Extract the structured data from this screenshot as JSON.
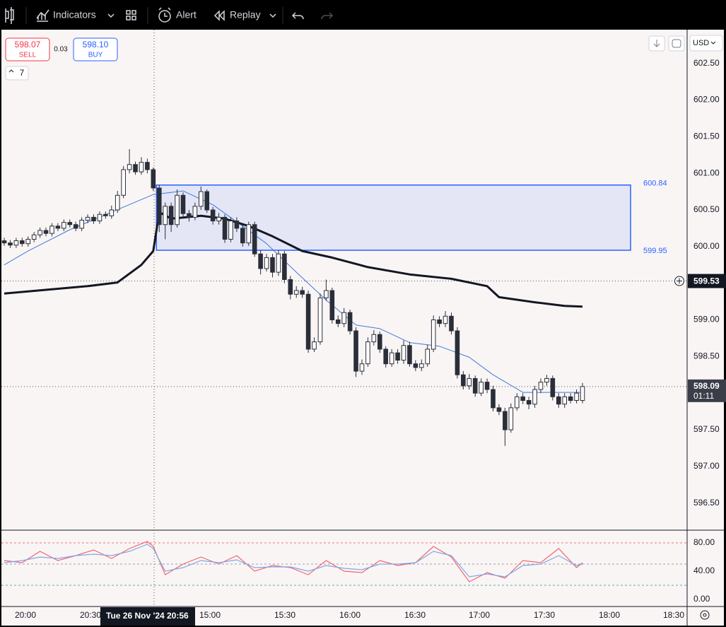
{
  "toolbar": {
    "indicators": "Indicators",
    "alert": "Alert",
    "replay": "Replay"
  },
  "trade": {
    "sell_price": "598.07",
    "sell": "SELL",
    "spread": "0.03",
    "buy_price": "598.10",
    "buy": "BUY"
  },
  "interval_badge": "7",
  "currency": "USD",
  "chart_data": [
    {
      "type": "candlestick",
      "up_color": "#ffffff",
      "down_color": "#2a2e39",
      "ohlc": [
        [
          600.08,
          600.12,
          600.01,
          600.05
        ],
        [
          600.05,
          600.09,
          599.98,
          600.02
        ],
        [
          600.02,
          600.12,
          599.98,
          600.08
        ],
        [
          600.08,
          600.12,
          600.0,
          600.04
        ],
        [
          600.04,
          600.14,
          600.0,
          600.1
        ],
        [
          600.1,
          600.2,
          600.06,
          600.16
        ],
        [
          600.16,
          600.26,
          600.12,
          600.22
        ],
        [
          600.22,
          600.26,
          600.14,
          600.18
        ],
        [
          600.18,
          600.32,
          600.14,
          600.28
        ],
        [
          600.28,
          600.32,
          600.21,
          600.25
        ],
        [
          600.25,
          600.37,
          600.21,
          600.33
        ],
        [
          600.33,
          600.37,
          600.26,
          600.3
        ],
        [
          600.3,
          600.34,
          600.21,
          600.25
        ],
        [
          600.25,
          600.4,
          600.21,
          600.36
        ],
        [
          600.36,
          600.44,
          600.32,
          600.4
        ],
        [
          600.4,
          600.44,
          600.31,
          600.35
        ],
        [
          600.35,
          600.48,
          600.31,
          600.44
        ],
        [
          600.44,
          600.48,
          600.38,
          600.42
        ],
        [
          600.42,
          600.56,
          600.38,
          600.5
        ],
        [
          600.5,
          600.76,
          600.46,
          600.7
        ],
        [
          600.7,
          601.1,
          600.66,
          601.05
        ],
        [
          601.05,
          601.33,
          601.0,
          601.12
        ],
        [
          601.12,
          601.16,
          600.98,
          601.02
        ],
        [
          601.02,
          601.22,
          600.98,
          601.15
        ],
        [
          601.15,
          601.2,
          601.0,
          601.05
        ],
        [
          601.05,
          601.08,
          600.76,
          600.8
        ],
        [
          600.8,
          600.84,
          600.2,
          600.3
        ],
        [
          600.3,
          600.6,
          600.1,
          600.55
        ],
        [
          600.55,
          600.6,
          600.2,
          600.3
        ],
        [
          600.3,
          600.78,
          600.26,
          600.7
        ],
        [
          600.7,
          600.74,
          600.4,
          600.45
        ],
        [
          600.45,
          600.5,
          600.34,
          600.4
        ],
        [
          600.4,
          600.6,
          600.36,
          600.55
        ],
        [
          600.55,
          600.82,
          600.5,
          600.75
        ],
        [
          600.75,
          600.78,
          600.46,
          600.5
        ],
        [
          600.5,
          600.54,
          600.3,
          600.35
        ],
        [
          600.35,
          600.46,
          600.3,
          600.4
        ],
        [
          600.4,
          600.44,
          600.05,
          600.1
        ],
        [
          600.1,
          600.4,
          600.06,
          600.35
        ],
        [
          600.35,
          600.4,
          600.2,
          600.25
        ],
        [
          600.25,
          600.3,
          600.0,
          600.05
        ],
        [
          600.05,
          600.34,
          600.01,
          600.3
        ],
        [
          600.3,
          600.34,
          599.86,
          599.9
        ],
        [
          599.9,
          599.95,
          599.62,
          599.7
        ],
        [
          599.7,
          599.9,
          599.66,
          599.85
        ],
        [
          599.85,
          599.9,
          599.58,
          599.65
        ],
        [
          599.65,
          599.95,
          599.6,
          599.9
        ],
        [
          599.9,
          599.94,
          599.5,
          599.55
        ],
        [
          599.55,
          599.6,
          599.28,
          599.35
        ],
        [
          599.35,
          599.46,
          599.3,
          599.4
        ],
        [
          599.4,
          599.45,
          599.3,
          599.35
        ],
        [
          599.35,
          599.4,
          598.55,
          598.6
        ],
        [
          598.6,
          598.76,
          598.56,
          598.7
        ],
        [
          598.7,
          599.36,
          598.66,
          599.3
        ],
        [
          599.3,
          599.55,
          599.26,
          599.4
        ],
        [
          599.4,
          599.44,
          598.95,
          599.0
        ],
        [
          599.0,
          599.06,
          598.9,
          598.95
        ],
        [
          598.95,
          599.16,
          598.9,
          599.1
        ],
        [
          599.1,
          599.14,
          598.8,
          598.85
        ],
        [
          598.85,
          598.9,
          598.22,
          598.3
        ],
        [
          598.3,
          598.46,
          598.25,
          598.4
        ],
        [
          598.4,
          598.76,
          598.36,
          598.7
        ],
        [
          598.7,
          598.86,
          598.65,
          598.8
        ],
        [
          598.8,
          598.84,
          598.55,
          598.6
        ],
        [
          598.6,
          598.64,
          598.35,
          598.4
        ],
        [
          598.4,
          598.6,
          598.36,
          598.55
        ],
        [
          598.55,
          598.6,
          598.4,
          598.45
        ],
        [
          598.45,
          598.72,
          598.4,
          598.65
        ],
        [
          598.65,
          598.7,
          598.36,
          598.4
        ],
        [
          598.4,
          598.45,
          598.3,
          598.35
        ],
        [
          598.35,
          598.46,
          598.3,
          598.4
        ],
        [
          598.4,
          598.66,
          598.36,
          598.6
        ],
        [
          598.6,
          599.06,
          598.56,
          599.0
        ],
        [
          599.0,
          599.05,
          598.9,
          598.95
        ],
        [
          598.95,
          599.12,
          598.9,
          599.05
        ],
        [
          599.05,
          599.1,
          598.8,
          598.85
        ],
        [
          598.85,
          598.9,
          598.2,
          598.25
        ],
        [
          598.25,
          598.3,
          598.05,
          598.1
        ],
        [
          598.1,
          598.26,
          598.05,
          598.2
        ],
        [
          598.2,
          598.24,
          597.95,
          598.0
        ],
        [
          598.0,
          598.2,
          597.96,
          598.15
        ],
        [
          598.15,
          598.2,
          598.0,
          598.05
        ],
        [
          598.05,
          598.1,
          597.75,
          597.8
        ],
        [
          597.8,
          597.85,
          597.7,
          597.75
        ],
        [
          597.75,
          597.8,
          597.28,
          597.5
        ],
        [
          597.5,
          597.86,
          597.46,
          597.8
        ],
        [
          597.8,
          598.0,
          597.76,
          597.95
        ],
        [
          597.95,
          598.0,
          597.85,
          597.9
        ],
        [
          597.9,
          597.95,
          597.78,
          597.85
        ],
        [
          597.85,
          598.1,
          597.8,
          598.05
        ],
        [
          598.05,
          598.2,
          598.0,
          598.15
        ],
        [
          598.15,
          598.25,
          598.1,
          598.2
        ],
        [
          598.2,
          598.24,
          597.9,
          597.95
        ],
        [
          597.95,
          598.0,
          597.8,
          597.85
        ],
        [
          597.85,
          598.0,
          597.8,
          597.95
        ],
        [
          597.95,
          598.0,
          597.86,
          597.9
        ],
        [
          597.9,
          598.05,
          597.86,
          598.0
        ],
        [
          597.9,
          598.14,
          597.86,
          598.09
        ]
      ],
      "overlays": [
        {
          "color": "#3d7bd9",
          "width": 1,
          "x": [
            0,
            4,
            11,
            18,
            25,
            30,
            35,
            40,
            44,
            49,
            54,
            59,
            63,
            68,
            73,
            78,
            82,
            87,
            92,
            97
          ],
          "values": [
            599.75,
            599.94,
            600.23,
            600.47,
            600.71,
            600.76,
            600.57,
            600.28,
            600.04,
            599.65,
            599.27,
            598.93,
            598.88,
            598.69,
            598.64,
            598.49,
            598.25,
            598.01,
            598.01,
            598.01
          ]
        },
        {
          "color": "#131722",
          "width": 3,
          "x": [
            0,
            7,
            14,
            19,
            23,
            25,
            26,
            28,
            33,
            37,
            41,
            45,
            50,
            55,
            61,
            68,
            75,
            81,
            83,
            89,
            94,
            97
          ],
          "values": [
            599.36,
            599.41,
            599.46,
            599.51,
            599.75,
            599.94,
            600.47,
            600.38,
            600.42,
            600.38,
            600.28,
            600.14,
            599.94,
            599.85,
            599.72,
            599.62,
            599.56,
            599.46,
            599.31,
            599.24,
            599.19,
            599.18
          ]
        }
      ],
      "zone": {
        "top": 600.84,
        "bottom": 599.95,
        "color": "#2962ff"
      },
      "crosshair": {
        "price": 599.53,
        "date": "Tue 26 Nov '24",
        "time": "20:56"
      },
      "last_price": 598.09,
      "countdown": "01:11",
      "ylim": [
        596.13,
        602.96
      ],
      "yticks": [
        {
          "value": 602.5,
          "label": "602.50"
        },
        {
          "value": 602,
          "label": "602.00"
        },
        {
          "value": 601.5,
          "label": "601.50"
        },
        {
          "value": 601,
          "label": "601.00"
        },
        {
          "value": 600.5,
          "label": "600.50"
        },
        {
          "value": 600,
          "label": "600.00"
        },
        {
          "value": 599.5,
          "label": "599.50"
        },
        {
          "value": 599,
          "label": "599.00"
        },
        {
          "value": 598.5,
          "label": "598.50"
        },
        {
          "value": 598,
          "label": "598.00"
        },
        {
          "value": 597.5,
          "label": "597.50"
        },
        {
          "value": 597,
          "label": "597.00"
        },
        {
          "value": 596.5,
          "label": "596.50"
        }
      ],
      "xticks": [
        "20:00",
        "20:30",
        "15:00",
        "15:30",
        "16:00",
        "16:30",
        "17:00",
        "17:30",
        "18:00",
        "18:30"
      ]
    },
    {
      "type": "line",
      "ylim": [
        -9,
        97
      ],
      "yticks": [
        {
          "value": 80,
          "label": "80.00"
        },
        {
          "value": 40,
          "label": "40.00"
        },
        {
          "value": 0,
          "label": "0.00"
        }
      ],
      "levels": [
        {
          "value": 80,
          "color": "#f23645"
        },
        {
          "value": 50,
          "color": "#787b86"
        },
        {
          "value": 20,
          "color": "#089981"
        }
      ],
      "x": [
        0,
        3,
        6,
        9,
        12,
        15,
        18,
        21,
        24,
        25,
        27,
        30,
        33,
        36,
        39,
        42,
        45,
        48,
        51,
        54,
        57,
        60,
        63,
        66,
        69,
        72,
        75,
        78,
        81,
        84,
        87,
        90,
        93,
        96,
        97
      ],
      "series": [
        {
          "color": "#f0676f",
          "values": [
            55,
            52,
            68,
            55,
            62,
            70,
            58,
            72,
            82,
            75,
            35,
            50,
            60,
            50,
            62,
            40,
            48,
            45,
            35,
            55,
            40,
            38,
            55,
            48,
            52,
            75,
            60,
            25,
            38,
            30,
            55,
            52,
            72,
            45,
            52
          ]
        },
        {
          "color": "#7fa7e8",
          "values": [
            52,
            55,
            60,
            58,
            62,
            64,
            62,
            68,
            78,
            72,
            40,
            45,
            55,
            52,
            56,
            45,
            46,
            46,
            40,
            48,
            44,
            42,
            50,
            50,
            52,
            68,
            62,
            32,
            36,
            32,
            48,
            50,
            62,
            48,
            50
          ]
        }
      ]
    }
  ]
}
